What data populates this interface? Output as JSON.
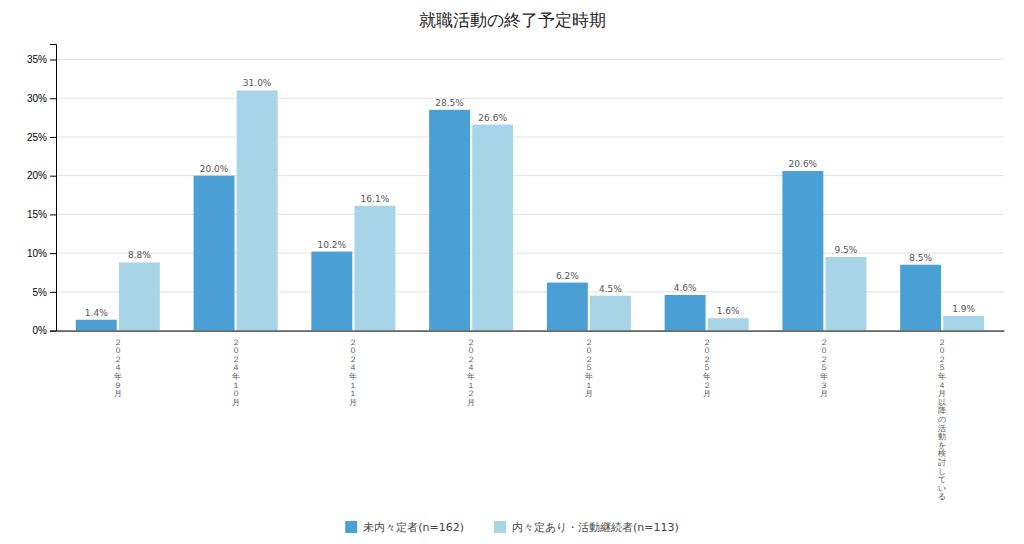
{
  "chart_data": {
    "type": "bar",
    "title": "就職活動の終了予定時期",
    "categories": [
      "２\n０\n２\n４\n年\n９\n月",
      "２\n０\n２\n４\n年\n１\n０\n月",
      "２\n０\n２\n４\n年\n１\n１\n月",
      "２\n０\n２\n４\n年\n１\n２\n月",
      "２\n０\n２\n５\n年\n１\n月",
      "２\n０\n２\n５\n年\n２\n月",
      "２\n０\n２\n５\n年\n３\n月",
      "２\n０\n２\n５\n年\n４\n月\n以\n降\nの\n活\n動\nを\n検\n討\nし\nて\nい\nる"
    ],
    "series": [
      {
        "name": "未内々定者(n=162)",
        "color": "#4a9fd4",
        "values": [
          1.4,
          20.0,
          10.2,
          28.5,
          6.2,
          4.6,
          20.6,
          8.5
        ],
        "value_labels": [
          "1.4%",
          "20.0%",
          "10.2%",
          "28.5%",
          "6.2%",
          "4.6%",
          "20.6%",
          "8.5%"
        ]
      },
      {
        "name": "内々定あり・活動継続者(n=113)",
        "color": "#a8d4e8",
        "values": [
          8.8,
          31.0,
          16.1,
          26.6,
          4.5,
          1.6,
          9.5,
          1.9
        ],
        "value_labels": [
          "8.8%",
          "31.0%",
          "16.1%",
          "26.6%",
          "4.5%",
          "1.6%",
          "9.5%",
          "1.9%"
        ]
      }
    ],
    "ylim": [
      0,
      37
    ],
    "yticks": [
      {
        "value": 0,
        "label": "0%"
      },
      {
        "value": 5,
        "label": "5%"
      },
      {
        "value": 10,
        "label": "10%"
      },
      {
        "value": 15,
        "label": "15%"
      },
      {
        "value": 20,
        "label": "20%"
      },
      {
        "value": 25,
        "label": "25%"
      },
      {
        "value": 30,
        "label": "30%"
      },
      {
        "value": 35,
        "label": "35%"
      }
    ],
    "grid": true,
    "legend": "bottom",
    "data_labels": true
  }
}
